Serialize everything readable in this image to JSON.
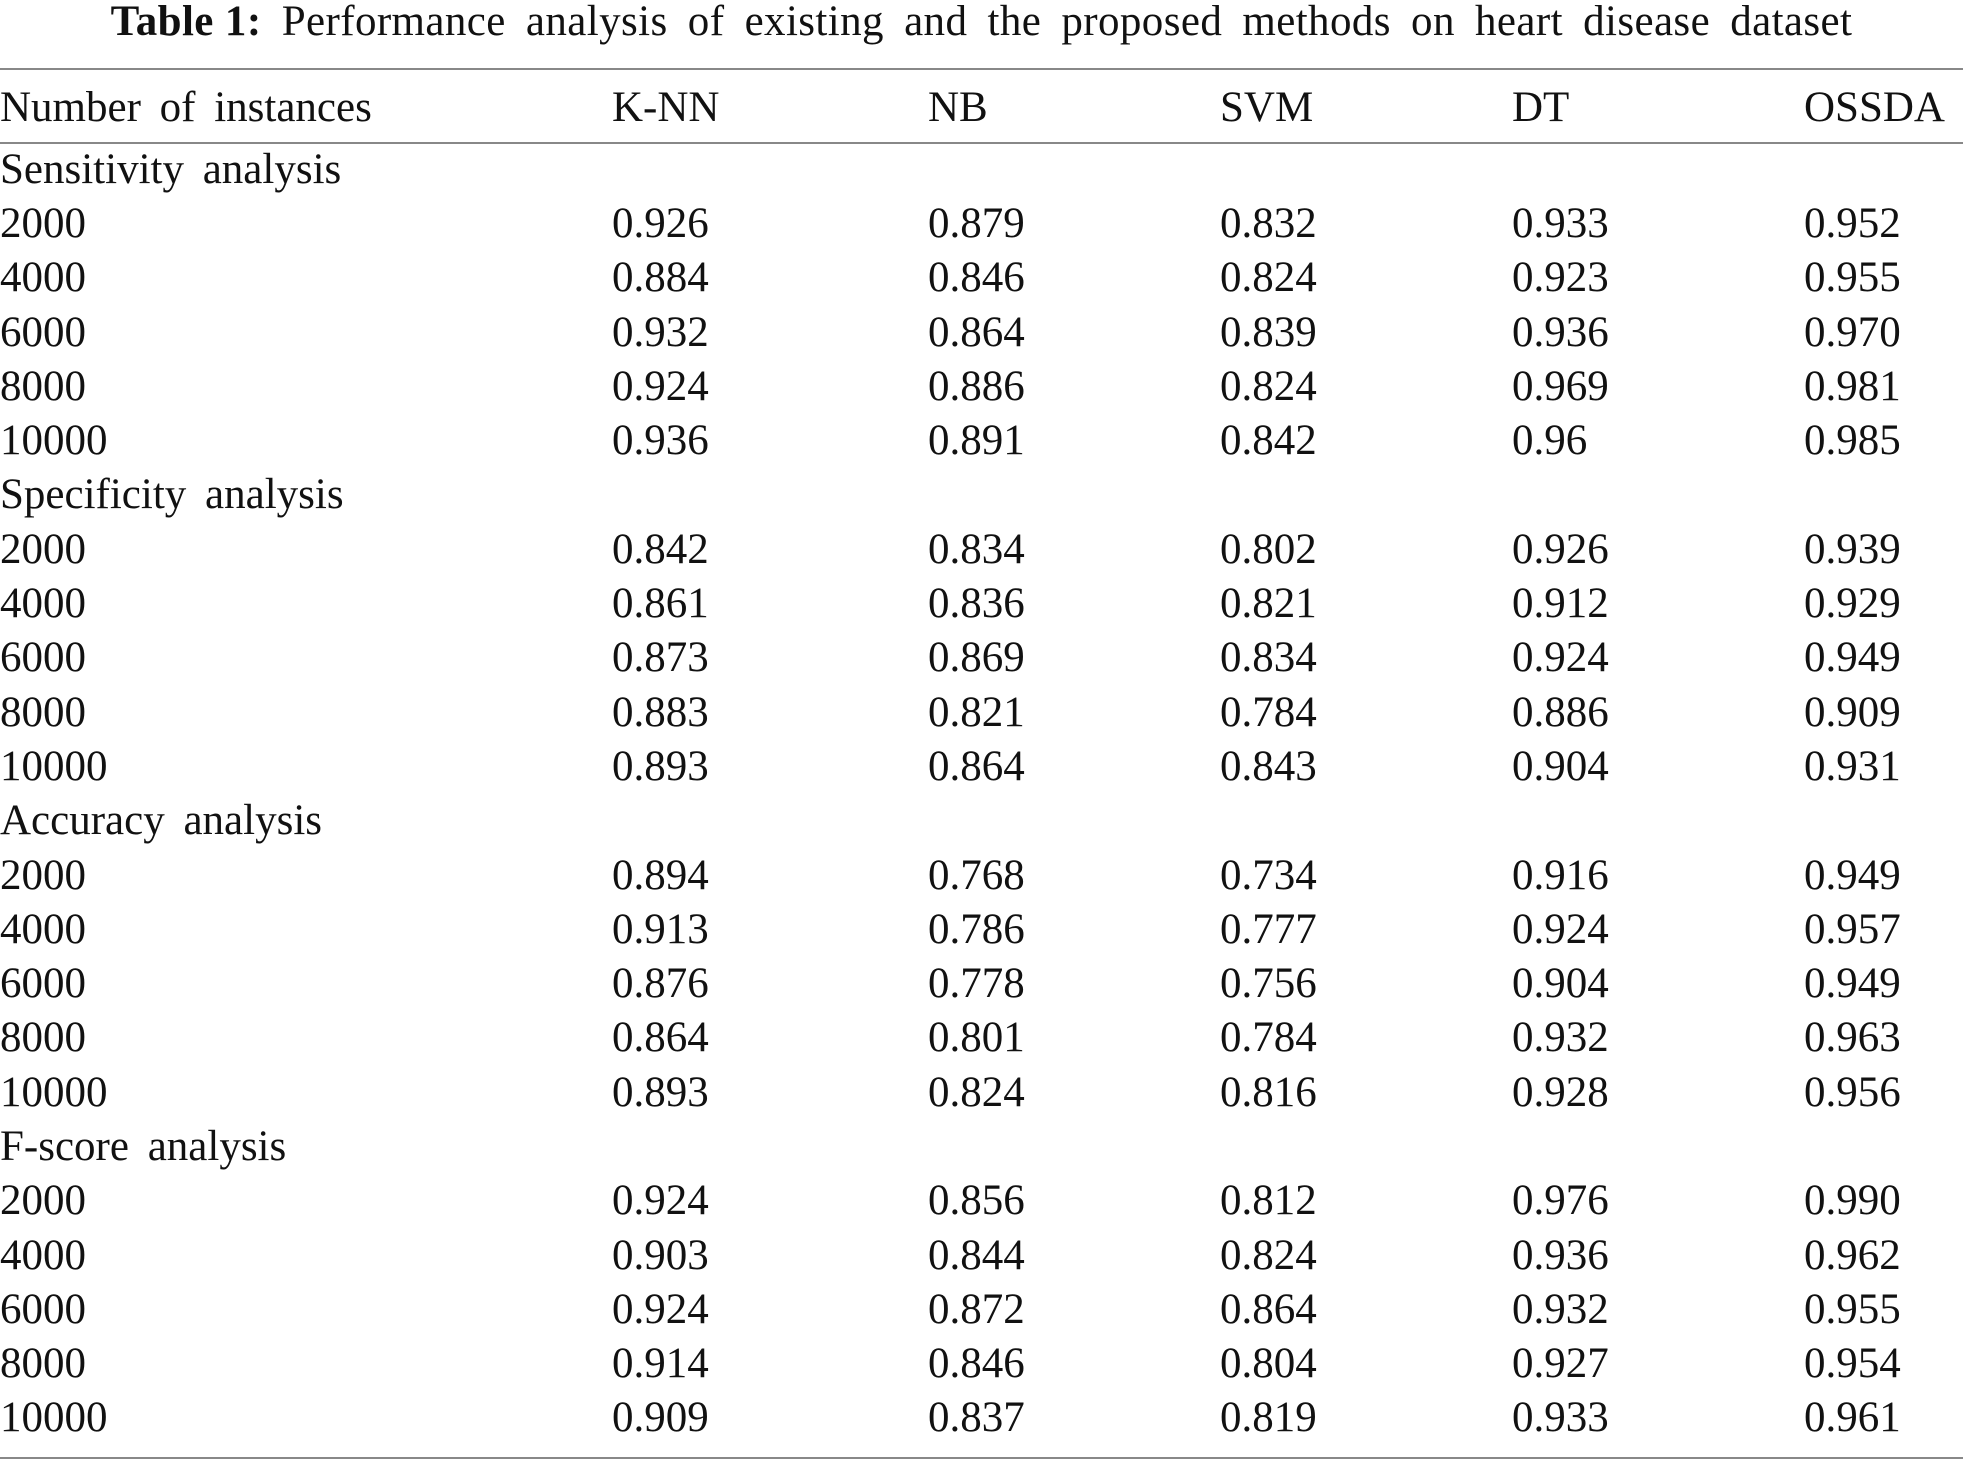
{
  "caption": {
    "label": "Table 1:",
    "text": "Performance analysis of existing and the proposed methods on heart disease dataset"
  },
  "table": {
    "headers": [
      "Number of instances",
      "K-NN",
      "NB",
      "SVM",
      "DT",
      "OSSDA"
    ],
    "sections": [
      {
        "title": "Sensitivity analysis",
        "rows": [
          [
            "2000",
            "0.926",
            "0.879",
            "0.832",
            "0.933",
            "0.952"
          ],
          [
            "4000",
            "0.884",
            "0.846",
            "0.824",
            "0.923",
            "0.955"
          ],
          [
            "6000",
            "0.932",
            "0.864",
            "0.839",
            "0.936",
            "0.970"
          ],
          [
            "8000",
            "0.924",
            "0.886",
            "0.824",
            "0.969",
            "0.981"
          ],
          [
            "10000",
            "0.936",
            "0.891",
            "0.842",
            "0.96",
            "0.985"
          ]
        ]
      },
      {
        "title": "Specificity analysis",
        "rows": [
          [
            "2000",
            "0.842",
            "0.834",
            "0.802",
            "0.926",
            "0.939"
          ],
          [
            "4000",
            "0.861",
            "0.836",
            "0.821",
            "0.912",
            "0.929"
          ],
          [
            "6000",
            "0.873",
            "0.869",
            "0.834",
            "0.924",
            "0.949"
          ],
          [
            "8000",
            "0.883",
            "0.821",
            "0.784",
            "0.886",
            "0.909"
          ],
          [
            "10000",
            "0.893",
            "0.864",
            "0.843",
            "0.904",
            "0.931"
          ]
        ]
      },
      {
        "title": "Accuracy analysis",
        "rows": [
          [
            "2000",
            "0.894",
            "0.768",
            "0.734",
            "0.916",
            "0.949"
          ],
          [
            "4000",
            "0.913",
            "0.786",
            "0.777",
            "0.924",
            "0.957"
          ],
          [
            "6000",
            "0.876",
            "0.778",
            "0.756",
            "0.904",
            "0.949"
          ],
          [
            "8000",
            "0.864",
            "0.801",
            "0.784",
            "0.932",
            "0.963"
          ],
          [
            "10000",
            "0.893",
            "0.824",
            "0.816",
            "0.928",
            "0.956"
          ]
        ]
      },
      {
        "title": "F-score analysis",
        "rows": [
          [
            "2000",
            "0.924",
            "0.856",
            "0.812",
            "0.976",
            "0.990"
          ],
          [
            "4000",
            "0.903",
            "0.844",
            "0.824",
            "0.936",
            "0.962"
          ],
          [
            "6000",
            "0.924",
            "0.872",
            "0.864",
            "0.932",
            "0.955"
          ],
          [
            "8000",
            "0.914",
            "0.846",
            "0.804",
            "0.927",
            "0.954"
          ],
          [
            "10000",
            "0.909",
            "0.837",
            "0.819",
            "0.933",
            "0.961"
          ]
        ]
      }
    ]
  }
}
